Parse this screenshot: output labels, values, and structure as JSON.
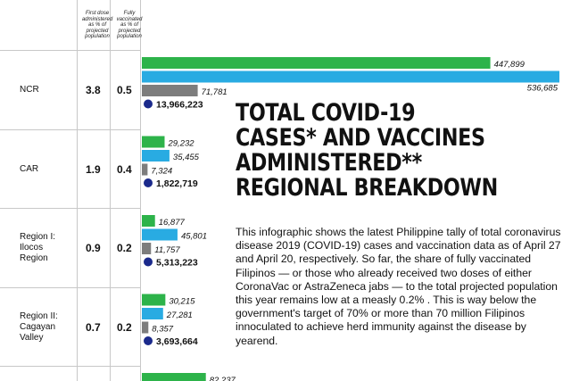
{
  "headers": {
    "first_dose": "First dose administered as % of projected population",
    "fully_vaccinated": "Fully vaccinated as % of projected population"
  },
  "title": "TOTAL COVID-19\nCASES* AND VACCINES\nADMINISTERED**\nREGIONAL BREAKDOWN",
  "description": "This infographic shows the latest Philippine tally of total coronavirus disease 2019 (COVID-19) cases and vaccination data as of April 27 and April 20, respectively. So far, the share of fully vaccinated Filipinos — or those who already received two doses of either CoronaVac or AstraZeneca jabs — to the total projected population this year remains low at a measly 0.2% . This is way below the government's target of 70% or more than 70 million Filipinos innoculated to achieve herd immunity against the disease by yearend.",
  "colors": {
    "green": "#2db34a",
    "blue": "#29abe2",
    "gray": "#7d7d7d",
    "navy": "#1b2a8c"
  },
  "chart_data": {
    "type": "bar",
    "orientation": "horizontal",
    "xlim": [
      0,
      536685
    ],
    "regions": [
      {
        "name": "NCR",
        "first_dose_pct": "3.8",
        "fully_pct": "0.5",
        "green": 447899,
        "blue": 536685,
        "gray": 71781,
        "population": "13,966,223",
        "labels": {
          "green": "447,899",
          "blue": "536,685",
          "gray": "71,781"
        }
      },
      {
        "name": "CAR",
        "first_dose_pct": "1.9",
        "fully_pct": "0.4",
        "green": 29232,
        "blue": 35455,
        "gray": 7324,
        "population": "1,822,719",
        "labels": {
          "green": "29,232",
          "blue": "35,455",
          "gray": "7,324"
        }
      },
      {
        "name": "Region I:\nIlocos\nRegion",
        "first_dose_pct": "0.9",
        "fully_pct": "0.2",
        "green": 16877,
        "blue": 45801,
        "gray": 11757,
        "population": "5,313,223",
        "labels": {
          "green": "16,877",
          "blue": "45,801",
          "gray": "11,757"
        }
      },
      {
        "name": "Region II:\nCagayan\nValley",
        "first_dose_pct": "0.7",
        "fully_pct": "0.2",
        "green": 30215,
        "blue": 27281,
        "gray": 8357,
        "population": "3,693,664",
        "labels": {
          "green": "30,215",
          "blue": "27,281",
          "gray": "8,357"
        }
      },
      {
        "name": "",
        "first_dose_pct": "",
        "fully_pct": "",
        "green": 82237,
        "blue": null,
        "gray": null,
        "population": "",
        "labels": {
          "green": "82,237",
          "blue": "",
          "gray": ""
        }
      }
    ]
  }
}
